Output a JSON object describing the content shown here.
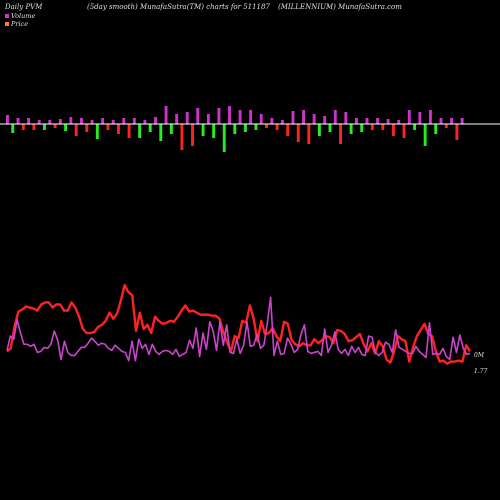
{
  "header": {
    "left": "Daily PVM",
    "center": "(5day smooth) MunafaSutra(TM) charts for 511187",
    "right": "(MILLENNIUM) MunafaSutra.com"
  },
  "legend": [
    {
      "label": "Volume",
      "color": "#cc33cc"
    },
    {
      "label": "Price",
      "color": "#ff7744"
    }
  ],
  "colors": {
    "up": "#cc33cc",
    "down": "#ff2222",
    "green": "#22ee22",
    "price": "#ff2222",
    "volume": "#cc44cc",
    "axis": "#ffffff"
  },
  "end_labels": {
    "volume": "0M",
    "price": "1.77"
  },
  "chart_data": [
    {
      "type": "bar",
      "title": "Daily PVM",
      "bars": [
        {
          "v": 9,
          "c": "up"
        },
        {
          "v": -9,
          "c": "green"
        },
        {
          "v": 6,
          "c": "up"
        },
        {
          "v": -6,
          "c": "down"
        },
        {
          "v": 6,
          "c": "up"
        },
        {
          "v": -6,
          "c": "down"
        },
        {
          "v": 4,
          "c": "up"
        },
        {
          "v": -6,
          "c": "green"
        },
        {
          "v": 4,
          "c": "up"
        },
        {
          "v": -4,
          "c": "down"
        },
        {
          "v": 5,
          "c": "up"
        },
        {
          "v": -7,
          "c": "green"
        },
        {
          "v": 7,
          "c": "up"
        },
        {
          "v": -12,
          "c": "down"
        },
        {
          "v": 6,
          "c": "up"
        },
        {
          "v": -8,
          "c": "down"
        },
        {
          "v": 4,
          "c": "up"
        },
        {
          "v": -15,
          "c": "green"
        },
        {
          "v": 6,
          "c": "up"
        },
        {
          "v": -6,
          "c": "down"
        },
        {
          "v": 4,
          "c": "up"
        },
        {
          "v": -10,
          "c": "down"
        },
        {
          "v": 6,
          "c": "up"
        },
        {
          "v": -14,
          "c": "down"
        },
        {
          "v": 6,
          "c": "up"
        },
        {
          "v": -14,
          "c": "green"
        },
        {
          "v": 4,
          "c": "up"
        },
        {
          "v": -8,
          "c": "green"
        },
        {
          "v": 7,
          "c": "up"
        },
        {
          "v": -17,
          "c": "green"
        },
        {
          "v": 18,
          "c": "up"
        },
        {
          "v": -10,
          "c": "green"
        },
        {
          "v": 10,
          "c": "up"
        },
        {
          "v": -26,
          "c": "down"
        },
        {
          "v": 12,
          "c": "up"
        },
        {
          "v": -22,
          "c": "down"
        },
        {
          "v": 16,
          "c": "up"
        },
        {
          "v": -12,
          "c": "green"
        },
        {
          "v": 10,
          "c": "up"
        },
        {
          "v": -14,
          "c": "green"
        },
        {
          "v": 16,
          "c": "up"
        },
        {
          "v": -28,
          "c": "green"
        },
        {
          "v": 18,
          "c": "up"
        },
        {
          "v": -10,
          "c": "green"
        },
        {
          "v": 14,
          "c": "up"
        },
        {
          "v": -8,
          "c": "green"
        },
        {
          "v": 14,
          "c": "up"
        },
        {
          "v": -6,
          "c": "green"
        },
        {
          "v": 10,
          "c": "up"
        },
        {
          "v": -4,
          "c": "down"
        },
        {
          "v": 6,
          "c": "up"
        },
        {
          "v": -6,
          "c": "down"
        },
        {
          "v": 4,
          "c": "up"
        },
        {
          "v": -12,
          "c": "down"
        },
        {
          "v": 13,
          "c": "up"
        },
        {
          "v": -18,
          "c": "down"
        },
        {
          "v": 14,
          "c": "up"
        },
        {
          "v": -20,
          "c": "down"
        },
        {
          "v": 10,
          "c": "up"
        },
        {
          "v": -12,
          "c": "green"
        },
        {
          "v": 8,
          "c": "up"
        },
        {
          "v": -8,
          "c": "green"
        },
        {
          "v": 14,
          "c": "up"
        },
        {
          "v": -20,
          "c": "down"
        },
        {
          "v": 12,
          "c": "up"
        },
        {
          "v": -10,
          "c": "green"
        },
        {
          "v": 6,
          "c": "up"
        },
        {
          "v": -8,
          "c": "green"
        },
        {
          "v": 6,
          "c": "up"
        },
        {
          "v": -6,
          "c": "down"
        },
        {
          "v": 6,
          "c": "up"
        },
        {
          "v": -6,
          "c": "down"
        },
        {
          "v": 5,
          "c": "up"
        },
        {
          "v": -12,
          "c": "down"
        },
        {
          "v": 4,
          "c": "up"
        },
        {
          "v": -14,
          "c": "down"
        },
        {
          "v": 14,
          "c": "up"
        },
        {
          "v": -6,
          "c": "green"
        },
        {
          "v": 12,
          "c": "up"
        },
        {
          "v": -22,
          "c": "green"
        },
        {
          "v": 14,
          "c": "up"
        },
        {
          "v": -10,
          "c": "green"
        },
        {
          "v": 6,
          "c": "up"
        },
        {
          "v": -4,
          "c": "down"
        },
        {
          "v": 6,
          "c": "up"
        },
        {
          "v": -16,
          "c": "down"
        },
        {
          "v": 6,
          "c": "up"
        }
      ]
    },
    {
      "type": "line",
      "series": [
        {
          "name": "Price",
          "key": "price",
          "values": [
            70,
            67,
            45,
            31,
            29,
            26,
            27,
            28,
            30,
            24,
            22,
            22,
            27,
            24,
            24,
            30,
            30,
            22,
            27,
            36,
            48,
            52,
            52,
            51,
            46,
            44,
            40,
            32,
            38,
            33,
            20,
            5,
            12,
            15,
            50,
            32,
            48,
            44,
            52,
            36,
            40,
            43,
            42,
            40,
            41,
            36,
            30,
            25,
            31,
            30,
            32,
            34,
            34,
            34,
            35,
            35,
            38,
            51,
            61,
            70,
            55,
            57,
            40,
            42,
            25,
            38,
            60,
            40,
            53,
            52,
            47,
            55,
            60,
            41,
            43,
            59,
            63,
            65,
            62,
            64,
            64,
            58,
            62,
            59,
            55,
            56,
            62,
            49,
            50,
            53,
            60,
            59,
            56,
            53,
            63,
            70,
            62,
            72,
            60,
            65,
            78,
            81,
            70,
            55,
            58,
            60,
            80,
            66,
            55,
            49,
            43,
            53,
            55,
            70,
            80,
            79,
            82,
            80,
            80,
            79,
            80,
            64,
            70
          ]
        },
        {
          "name": "Volume",
          "key": "volume",
          "values": [
            69,
            55,
            58,
            39,
            52,
            63,
            63,
            65,
            63,
            71,
            70,
            66,
            67,
            63,
            50,
            59,
            78,
            60,
            71,
            74,
            74,
            70,
            66,
            66,
            62,
            57,
            60,
            64,
            62,
            63,
            67,
            69,
            64,
            67,
            70,
            71,
            79,
            60,
            79,
            58,
            67,
            63,
            73,
            63,
            70,
            73,
            70,
            69,
            70,
            73,
            68,
            75,
            73,
            71,
            59,
            67,
            47,
            75,
            52,
            68,
            41,
            50,
            69,
            41,
            64,
            44,
            71,
            72,
            58,
            72,
            64,
            41,
            65,
            64,
            53,
            67,
            64,
            43,
            17,
            74,
            60,
            73,
            72,
            57,
            63,
            71,
            68,
            53,
            44,
            70,
            72,
            71,
            70,
            74,
            48,
            71,
            64,
            51,
            68,
            72,
            68,
            74,
            65,
            71,
            66,
            73,
            74,
            55,
            56,
            71,
            74,
            71,
            61,
            63,
            71,
            49,
            66,
            68,
            70,
            72,
            72,
            65,
            70,
            73,
            76,
            42,
            73,
            72,
            73,
            67,
            75,
            78,
            56,
            71,
            54,
            67,
            73,
            72
          ]
        }
      ]
    }
  ]
}
